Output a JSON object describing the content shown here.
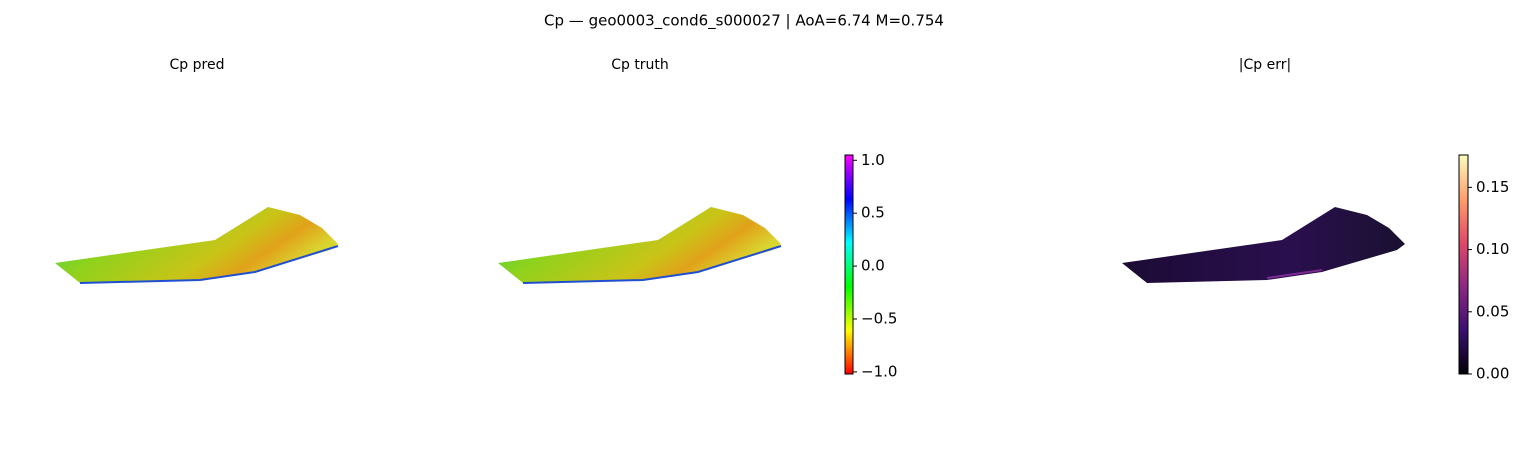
{
  "chart_data": {
    "type": "surface3d",
    "title": "Cp — geo0003_cond6_s000027 | AoA=6.74 M=0.754",
    "subplots": [
      {
        "title": "Cp pred"
      },
      {
        "title": "Cp truth"
      },
      {
        "title": "|Cp err|"
      }
    ],
    "colorbars": [
      {
        "ylim": [
          -1.02,
          1.05
        ],
        "yticks": [
          {
            "value": -1,
            "label": "−1.0"
          },
          {
            "value": -0.5,
            "label": "−0.5"
          },
          {
            "value": 0,
            "label": "0.0"
          },
          {
            "value": 0.5,
            "label": "0.5"
          },
          {
            "value": 1,
            "label": "1.0"
          }
        ],
        "colors": [
          "#ff0000",
          "#ffff00",
          "#00ff00",
          "#00ffff",
          "#0000ff",
          "#ff00ff"
        ]
      },
      {
        "ylim": [
          0,
          0.176
        ],
        "yticks": [
          {
            "value": 0,
            "label": "0.00"
          },
          0.05,
          {
            "value": 0.1,
            "label": "0.10"
          },
          0.15
        ],
        "colors": [
          "#000004",
          "#3b0f70",
          "#8c2981",
          "#de4968",
          "#fe9f6d",
          "#fcfdbf"
        ]
      }
    ]
  }
}
